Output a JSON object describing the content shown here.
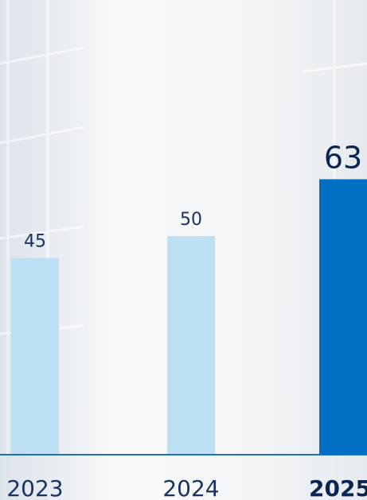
{
  "chart_data": {
    "type": "bar",
    "categories": [
      "2023",
      "2024",
      "2025"
    ],
    "values": [
      45,
      50,
      63
    ],
    "colors": [
      "#bde0f4",
      "#bde0f4",
      "#006fc4"
    ]
  }
}
